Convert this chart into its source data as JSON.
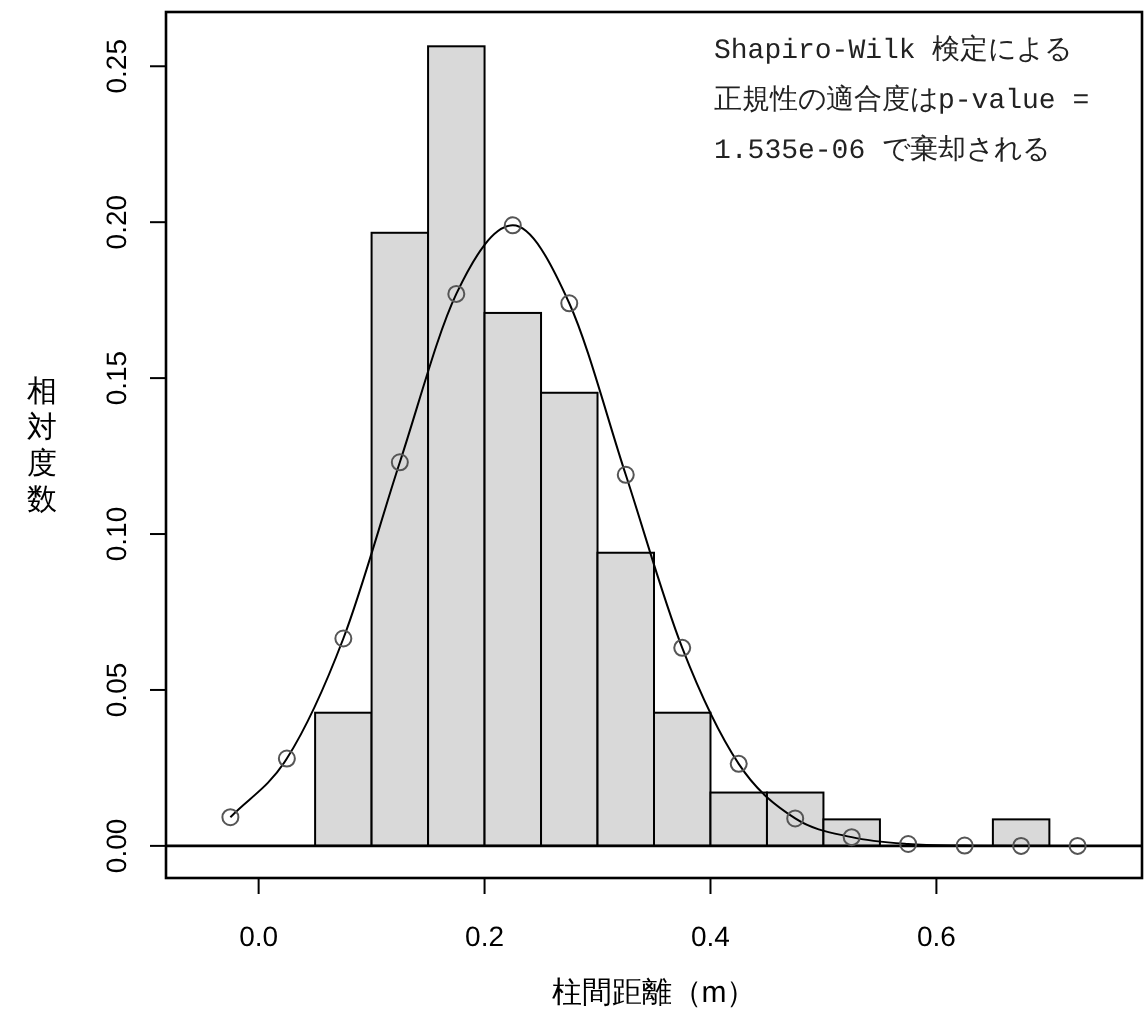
{
  "chart_data": {
    "type": "histogram",
    "xlabel": "柱間距離（m）",
    "ylabel": "相対度数",
    "bins": [
      0.05,
      0.1,
      0.15,
      0.2,
      0.25,
      0.3,
      0.35,
      0.4,
      0.45,
      0.5,
      0.55,
      0.6,
      0.65,
      0.7
    ],
    "values": [
      0.0427,
      0.1966,
      0.2564,
      0.1709,
      0.1453,
      0.094,
      0.0427,
      0.0171,
      0.0171,
      0.0085,
      0,
      0,
      0.0085
    ],
    "color": "#d9d9d9",
    "series": [
      {
        "type": "line",
        "marker": "circle",
        "color": "#000000",
        "x": [
          -0.025,
          0.025,
          0.075,
          0.125,
          0.175,
          0.225,
          0.275,
          0.325,
          0.375,
          0.425,
          0.475,
          0.525,
          0.575,
          0.625,
          0.675,
          0.725
        ],
        "values": [
          0.0092,
          0.028,
          0.0665,
          0.123,
          0.177,
          0.199,
          0.174,
          0.119,
          0.0635,
          0.0263,
          0.0088,
          0.0028,
          0.0006,
          0.0001,
          0,
          0
        ]
      }
    ],
    "xlim": [
      -0.082,
      0.782
    ],
    "ylim": [
      -0.0103,
      0.2674
    ],
    "xticks": [
      {
        "value": 0,
        "label": "0.0"
      },
      {
        "value": 0.2,
        "label": "0.2"
      },
      {
        "value": 0.4,
        "label": "0.4"
      },
      {
        "value": 0.6,
        "label": "0.6"
      }
    ],
    "yticks": [
      {
        "value": 0,
        "label": "0.00"
      },
      {
        "value": 0.05,
        "label": "0.05"
      },
      {
        "value": 0.1,
        "label": "0.10"
      },
      {
        "value": 0.15,
        "label": "0.15"
      },
      {
        "value": 0.2,
        "label": "0.20"
      },
      {
        "value": 0.25,
        "label": "0.25"
      }
    ],
    "ref_lines": [
      {
        "axis": "y",
        "value": 0,
        "color": "#000000"
      }
    ],
    "annotations": [
      "Shapiro-Wilk 検定による正規性の適合度はp-value = 1.535e-06 で棄却される"
    ],
    "grid": false
  }
}
